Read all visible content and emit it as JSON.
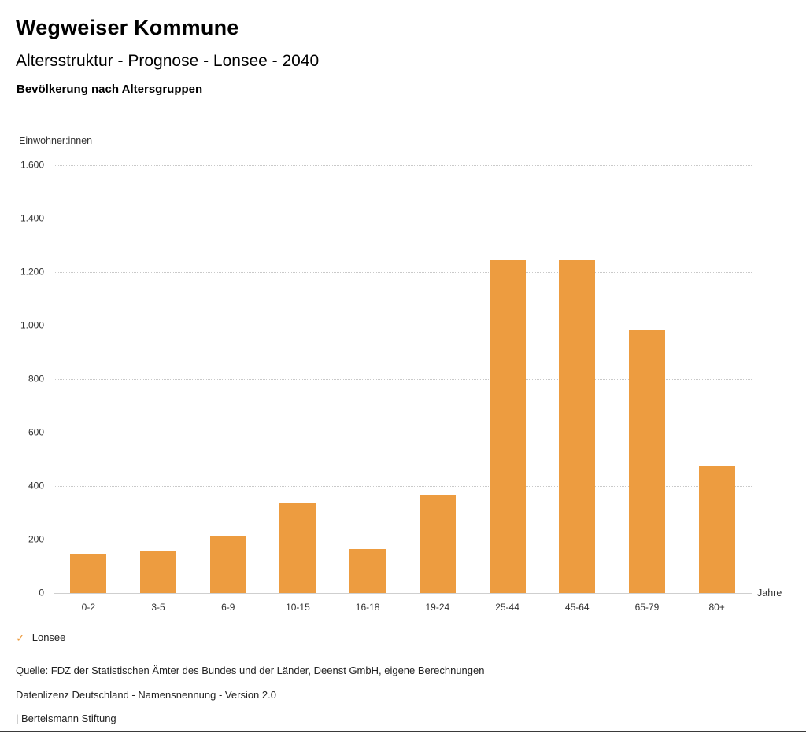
{
  "header": {
    "title": "Wegweiser Kommune",
    "subtitle": "Altersstruktur - Prognose - Lonsee - 2040",
    "chart_title": "Bevölkerung nach Altersgruppen"
  },
  "legend": {
    "check": "✓",
    "label": "Lonsee"
  },
  "footer": {
    "source": "Quelle: FDZ der Statistischen Ämter des Bundes und der Länder, Deenst GmbH, eigene Berechnungen",
    "license": "Datenlizenz Deutschland - Namensnennung - Version 2.0",
    "attribution": "| Bertelsmann Stiftung"
  },
  "chart_data": {
    "type": "bar",
    "title": "Bevölkerung nach Altersgruppen",
    "categories": [
      "0-2",
      "3-5",
      "6-9",
      "10-15",
      "16-18",
      "19-24",
      "25-44",
      "45-64",
      "65-79",
      "80+"
    ],
    "series": [
      {
        "name": "Lonsee",
        "values": [
          145,
          155,
          215,
          335,
          165,
          365,
          1245,
          1245,
          985,
          475
        ]
      }
    ],
    "xlabel": "Jahre",
    "ylabel": "Einwohner:innen",
    "ylim": [
      0,
      1600
    ],
    "ytick_step": 200,
    "ytick_labels": [
      "0",
      "200",
      "400",
      "600",
      "800",
      "1.000",
      "1.200",
      "1.400",
      "1.600"
    ],
    "bar_color": "#ED9C40",
    "accent_color": "#ED9C40",
    "grid": "dotted horizontal",
    "legend_position": "bottom-left"
  }
}
